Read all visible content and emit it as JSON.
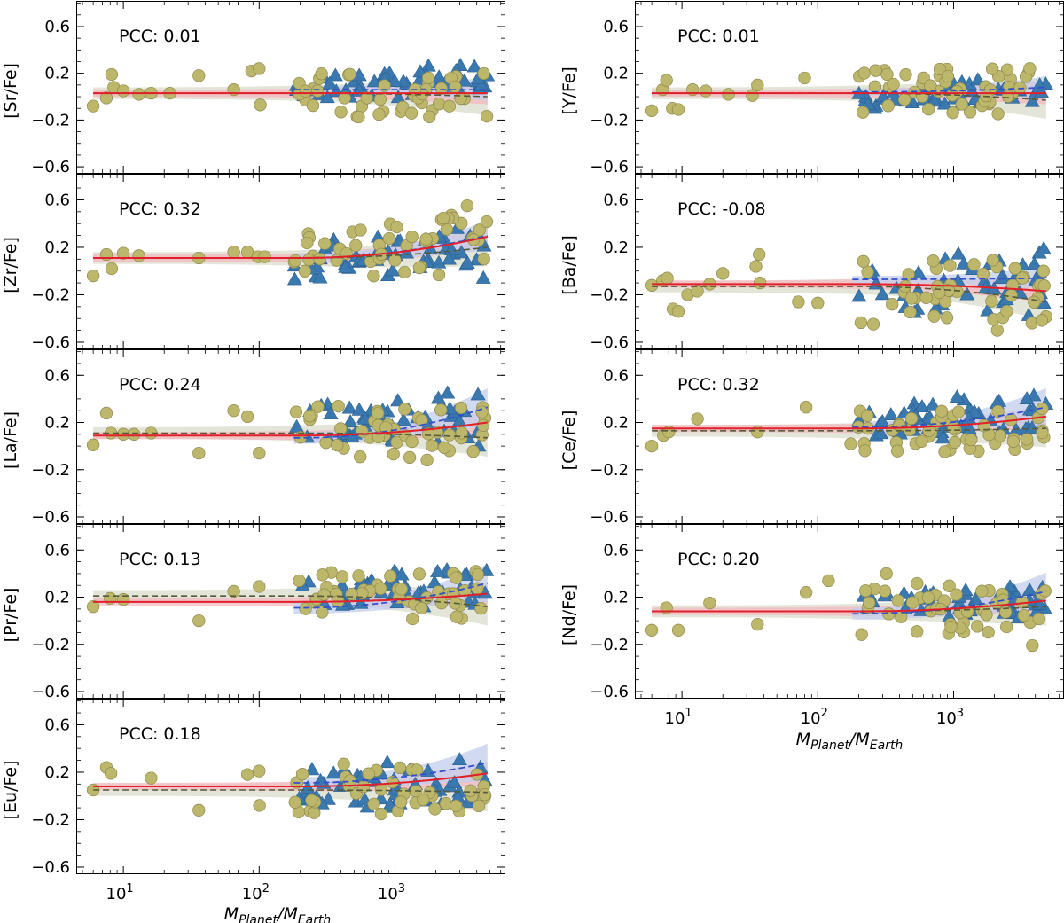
{
  "figure": {
    "xlabel": {
      "main1": "M",
      "sub1": "Planet",
      "slash": "/M",
      "sub2": "Earth"
    },
    "colors": {
      "stars_low": "#BDB76B",
      "stars_low_edge": "#8f8a4e",
      "stars_high": "#3A78B0",
      "fit_all": "#E0202A",
      "fit_all_band": "#F4B8C0",
      "fit_low": "#555a3a",
      "fit_low_band": "#d9dccb",
      "fit_high": "#3050D0",
      "fit_high_band": "#c3cdee"
    }
  },
  "chart_data": [
    {
      "type": "scatter",
      "id": "sr",
      "ylabel": "[Sr/Fe]",
      "pcc_text": "PCC: 0.01",
      "xscale": "log",
      "xlim": [
        4.5,
        6500
      ],
      "ylim": [
        -0.66,
        0.82
      ],
      "yticks": [
        -0.6,
        -0.2,
        0.2,
        0.6
      ],
      "yticklabels": [
        "−0.6",
        "−0.2",
        "0.2",
        "0.6"
      ],
      "xticks": [
        10,
        100,
        1000
      ],
      "xticklabels": [
        "10",
        "10",
        "10"
      ],
      "xtick_exponents": [
        "1",
        "2",
        "3"
      ],
      "show_xticklabels": false,
      "fit_all": {
        "base": 0.03,
        "end": 0.03,
        "band": 0.03
      },
      "fit_low": {
        "start": 1,
        "base": 0.03,
        "end": 0.0,
        "band": 0.05
      },
      "fit_high": {
        "start": 180,
        "base": 0.06,
        "end": 0.06,
        "band": 0.03
      },
      "count_low": 58,
      "count_high": 52,
      "anchors": [
        [
          6,
          -0.08
        ],
        [
          7.5,
          -0.01
        ],
        [
          8.2,
          0.19
        ],
        [
          8.5,
          0.08
        ],
        [
          10,
          0.05
        ],
        [
          13,
          0.02
        ],
        [
          16,
          0.03
        ],
        [
          22,
          0.03
        ],
        [
          36,
          0.18
        ],
        [
          65,
          0.06
        ],
        [
          88,
          0.22
        ],
        [
          100,
          0.24
        ],
        [
          102,
          -0.07
        ]
      ],
      "xmax": 4800,
      "y_low": [
        -0.2,
        0.2
      ],
      "y_high": [
        -0.12,
        0.33
      ]
    },
    {
      "type": "scatter",
      "id": "y",
      "ylabel": "[Y/Fe]",
      "pcc_text": "PCC: 0.01",
      "xscale": "log",
      "xlim": [
        4.5,
        6500
      ],
      "ylim": [
        -0.66,
        0.82
      ],
      "yticks": [
        -0.6,
        -0.2,
        0.2,
        0.6
      ],
      "yticklabels": [
        "−0.6",
        "−0.2",
        "0.2",
        "0.6"
      ],
      "xticks": [
        10,
        100,
        1000
      ],
      "xticklabels": [
        "10",
        "10",
        "10"
      ],
      "xtick_exponents": [
        "1",
        "2",
        "3"
      ],
      "show_xticklabels": false,
      "fit_all": {
        "base": 0.03,
        "end": 0.03,
        "band": 0.03
      },
      "fit_low": {
        "start": 1,
        "base": 0.03,
        "end": -0.03,
        "band": 0.05
      },
      "fit_high": {
        "start": 180,
        "base": 0.04,
        "end": 0.08,
        "band": 0.03
      },
      "count_low": 60,
      "count_high": 50,
      "anchors": [
        [
          6,
          -0.12
        ],
        [
          7.2,
          0.06
        ],
        [
          7.7,
          0.14
        ],
        [
          8.5,
          -0.1
        ],
        [
          9.4,
          -0.11
        ],
        [
          12,
          0.06
        ],
        [
          15,
          0.05
        ],
        [
          22,
          0.02
        ],
        [
          33,
          0.01
        ],
        [
          36,
          0.1
        ],
        [
          80,
          0.16
        ]
      ],
      "xmax": 4800,
      "y_low": [
        -0.15,
        0.25
      ],
      "y_high": [
        -0.18,
        0.2
      ]
    },
    {
      "type": "scatter",
      "id": "zr",
      "ylabel": "[Zr/Fe]",
      "pcc_text": "PCC: 0.32",
      "xscale": "log",
      "xlim": [
        4.5,
        6500
      ],
      "ylim": [
        -0.66,
        0.82
      ],
      "yticks": [
        -0.6,
        -0.2,
        0.2,
        0.6
      ],
      "yticklabels": [
        "−0.6",
        "−0.2",
        "0.2",
        "0.6"
      ],
      "xticks": [
        10,
        100,
        1000
      ],
      "xticklabels": [
        "10",
        "10",
        "10"
      ],
      "xtick_exponents": [
        "1",
        "2",
        "3"
      ],
      "show_xticklabels": false,
      "fit_all": {
        "base": 0.11,
        "end": 0.29,
        "band": 0.03
      },
      "fit_low": {
        "start": 1,
        "base": 0.11,
        "end": 0.2,
        "band": 0.05
      },
      "fit_high": {
        "start": 180,
        "base": 0.11,
        "end": 0.3,
        "band": 0.04
      },
      "count_low": 58,
      "count_high": 52,
      "anchors": [
        [
          6,
          -0.04
        ],
        [
          7.5,
          0.14
        ],
        [
          8.2,
          0.02
        ],
        [
          10,
          0.15
        ],
        [
          13,
          0.13
        ],
        [
          36,
          0.11
        ],
        [
          65,
          0.16
        ],
        [
          82,
          0.16
        ],
        [
          98,
          0.12
        ],
        [
          110,
          0.12
        ],
        [
          2600,
          0.47
        ],
        [
          3400,
          0.55
        ]
      ],
      "xmax": 4800,
      "y_low": [
        -0.05,
        0.45
      ],
      "y_high": [
        -0.18,
        0.45
      ]
    },
    {
      "type": "scatter",
      "id": "ba",
      "ylabel": "[Ba/Fe]",
      "pcc_text": "PCC: -0.08",
      "xscale": "log",
      "xlim": [
        4.5,
        6500
      ],
      "ylim": [
        -0.66,
        0.82
      ],
      "yticks": [
        -0.6,
        -0.2,
        0.2,
        0.6
      ],
      "yticklabels": [
        "−0.6",
        "−0.2",
        "0.2",
        "0.6"
      ],
      "xticks": [
        10,
        100,
        1000
      ],
      "xticklabels": [
        "10",
        "10",
        "10"
      ],
      "xtick_exponents": [
        "1",
        "2",
        "3"
      ],
      "show_xticklabels": false,
      "fit_all": {
        "base": -0.11,
        "end": -0.17,
        "band": 0.03
      },
      "fit_low": {
        "start": 1,
        "base": -0.13,
        "end": -0.26,
        "band": 0.05
      },
      "fit_high": {
        "start": 180,
        "base": -0.07,
        "end": -0.06,
        "band": 0.03
      },
      "count_low": 62,
      "count_high": 50,
      "anchors": [
        [
          6,
          -0.12
        ],
        [
          7.2,
          -0.08
        ],
        [
          7.8,
          -0.06
        ],
        [
          8.6,
          -0.32
        ],
        [
          9.4,
          -0.34
        ],
        [
          11,
          -0.2
        ],
        [
          13,
          -0.17
        ],
        [
          16,
          -0.11
        ],
        [
          20,
          -0.02
        ],
        [
          35,
          0.04
        ],
        [
          37,
          0.14
        ],
        [
          37.5,
          -0.1
        ],
        [
          72,
          -0.26
        ],
        [
          100,
          -0.27
        ],
        [
          2100,
          -0.5
        ]
      ],
      "xmax": 4800,
      "y_low": [
        -0.45,
        0.1
      ],
      "y_high": [
        -0.52,
        0.28
      ]
    },
    {
      "type": "scatter",
      "id": "la",
      "ylabel": "[La/Fe]",
      "pcc_text": "PCC: 0.24",
      "xscale": "log",
      "xlim": [
        4.5,
        6500
      ],
      "ylim": [
        -0.66,
        0.82
      ],
      "yticks": [
        -0.6,
        -0.2,
        0.2,
        0.6
      ],
      "yticklabels": [
        "−0.6",
        "−0.2",
        "0.2",
        "0.6"
      ],
      "xticks": [
        10,
        100,
        1000
      ],
      "xticklabels": [
        "10",
        "10",
        "10"
      ],
      "xtick_exponents": [
        "1",
        "2",
        "3"
      ],
      "show_xticklabels": false,
      "fit_all": {
        "base": 0.09,
        "end": 0.2,
        "band": 0.03
      },
      "fit_low": {
        "start": 1,
        "base": 0.11,
        "end": 0.07,
        "band": 0.05
      },
      "fit_high": {
        "start": 180,
        "base": 0.07,
        "end": 0.33,
        "band": 0.05
      },
      "count_low": 58,
      "count_high": 52,
      "anchors": [
        [
          6,
          0.01
        ],
        [
          7.5,
          0.28
        ],
        [
          8.1,
          0.11
        ],
        [
          10,
          0.1
        ],
        [
          12,
          0.1
        ],
        [
          16,
          0.11
        ],
        [
          36,
          -0.06
        ],
        [
          65,
          0.3
        ],
        [
          82,
          0.25
        ],
        [
          100,
          -0.06
        ]
      ],
      "xmax": 4800,
      "y_low": [
        -0.12,
        0.35
      ],
      "y_high": [
        -0.1,
        0.55
      ]
    },
    {
      "type": "scatter",
      "id": "ce",
      "ylabel": "[Ce/Fe]",
      "pcc_text": "PCC: 0.32",
      "xscale": "log",
      "xlim": [
        4.5,
        6500
      ],
      "ylim": [
        -0.66,
        0.82
      ],
      "yticks": [
        -0.6,
        -0.2,
        0.2,
        0.6
      ],
      "yticklabels": [
        "−0.6",
        "−0.2",
        "0.2",
        "0.6"
      ],
      "xticks": [
        10,
        100,
        1000
      ],
      "xticklabels": [
        "10",
        "10",
        "10"
      ],
      "xtick_exponents": [
        "1",
        "2",
        "3"
      ],
      "show_xticklabels": false,
      "fit_all": {
        "base": 0.15,
        "end": 0.25,
        "band": 0.03
      },
      "fit_low": {
        "start": 1,
        "base": 0.13,
        "end": 0.15,
        "band": 0.05
      },
      "fit_high": {
        "start": 180,
        "base": 0.16,
        "end": 0.33,
        "band": 0.05
      },
      "count_low": 56,
      "count_high": 52,
      "anchors": [
        [
          6,
          0.0
        ],
        [
          7.3,
          0.09
        ],
        [
          8,
          0.12
        ],
        [
          13,
          0.23
        ],
        [
          36,
          0.12
        ],
        [
          82,
          0.33
        ],
        [
          175,
          0.02
        ],
        [
          4200,
          0.24
        ],
        [
          4500,
          0.13
        ]
      ],
      "xmax": 4800,
      "y_low": [
        -0.05,
        0.32
      ],
      "y_high": [
        -0.02,
        0.52
      ]
    },
    {
      "type": "scatter",
      "id": "pr",
      "ylabel": "[Pr/Fe]",
      "pcc_text": "PCC: 0.13",
      "xscale": "log",
      "xlim": [
        4.5,
        6500
      ],
      "ylim": [
        -0.66,
        0.82
      ],
      "yticks": [
        -0.6,
        -0.2,
        0.2,
        0.6
      ],
      "yticklabels": [
        "−0.6",
        "−0.2",
        "0.2",
        "0.6"
      ],
      "xticks": [
        10,
        100,
        1000
      ],
      "xticklabels": [
        "10",
        "10",
        "10"
      ],
      "xtick_exponents": [
        "1",
        "2",
        "3"
      ],
      "show_xticklabels": false,
      "fit_all": {
        "base": 0.16,
        "end": 0.23,
        "band": 0.03
      },
      "fit_low": {
        "start": 1,
        "base": 0.21,
        "end": 0.12,
        "band": 0.05
      },
      "fit_high": {
        "start": 180,
        "base": 0.11,
        "end": 0.32,
        "band": 0.05
      },
      "count_low": 52,
      "count_high": 50,
      "anchors": [
        [
          6,
          0.12
        ],
        [
          8,
          0.19
        ],
        [
          10,
          0.18
        ],
        [
          36,
          0.0
        ],
        [
          65,
          0.25
        ],
        [
          100,
          0.29
        ],
        [
          340,
          0.41
        ],
        [
          3100,
          0.02
        ]
      ],
      "xmax": 4800,
      "y_low": [
        0.0,
        0.42
      ],
      "y_high": [
        0.02,
        0.5
      ]
    },
    {
      "type": "scatter",
      "id": "nd",
      "ylabel": "[Nd/Fe]",
      "pcc_text": "PCC: 0.20",
      "xscale": "log",
      "xlim": [
        4.5,
        6500
      ],
      "ylim": [
        -0.66,
        0.82
      ],
      "yticks": [
        -0.6,
        -0.2,
        0.2,
        0.6
      ],
      "yticklabels": [
        "−0.6",
        "−0.2",
        "0.2",
        "0.6"
      ],
      "xticks": [
        10,
        100,
        1000
      ],
      "xticklabels": [
        "10",
        "10",
        "10"
      ],
      "xtick_exponents": [
        "1",
        "2",
        "3"
      ],
      "show_xticklabels": true,
      "fit_all": {
        "base": 0.08,
        "end": 0.17,
        "band": 0.03
      },
      "fit_low": {
        "start": 1,
        "base": 0.08,
        "end": 0.12,
        "band": 0.05
      },
      "fit_high": {
        "start": 180,
        "base": 0.06,
        "end": 0.25,
        "band": 0.05
      },
      "count_low": 56,
      "count_high": 52,
      "anchors": [
        [
          6,
          -0.08
        ],
        [
          7.7,
          0.11
        ],
        [
          9.4,
          -0.08
        ],
        [
          16,
          0.15
        ],
        [
          36,
          -0.03
        ],
        [
          82,
          0.24
        ],
        [
          120,
          0.34
        ],
        [
          320,
          0.4
        ],
        [
          3800,
          -0.21
        ]
      ],
      "xmax": 4800,
      "y_low": [
        -0.12,
        0.32
      ],
      "y_high": [
        -0.05,
        0.35
      ]
    },
    {
      "type": "scatter",
      "id": "eu",
      "ylabel": "[Eu/Fe]",
      "pcc_text": "PCC: 0.18",
      "xscale": "log",
      "xlim": [
        4.5,
        6500
      ],
      "ylim": [
        -0.66,
        0.82
      ],
      "yticks": [
        -0.6,
        -0.2,
        0.2,
        0.6
      ],
      "yticklabels": [
        "−0.6",
        "−0.2",
        "0.2",
        "0.6"
      ],
      "xticks": [
        10,
        100,
        1000
      ],
      "xticklabels": [
        "10",
        "10",
        "10"
      ],
      "xtick_exponents": [
        "1",
        "2",
        "3"
      ],
      "show_xticklabels": true,
      "fit_all": {
        "base": 0.08,
        "end": 0.19,
        "band": 0.03
      },
      "fit_low": {
        "start": 1,
        "base": 0.05,
        "end": 0.03,
        "band": 0.05
      },
      "fit_high": {
        "start": 180,
        "base": 0.11,
        "end": 0.28,
        "band": 0.05
      },
      "count_low": 52,
      "count_high": 52,
      "anchors": [
        [
          6,
          0.05
        ],
        [
          7.5,
          0.24
        ],
        [
          8.1,
          0.19
        ],
        [
          16,
          0.15
        ],
        [
          36,
          -0.12
        ],
        [
          82,
          0.18
        ],
        [
          100,
          0.21
        ],
        [
          100.5,
          -0.08
        ],
        [
          4600,
          0.0
        ]
      ],
      "xmax": 4800,
      "y_low": [
        -0.16,
        0.3
      ],
      "y_high": [
        -0.22,
        0.42
      ]
    }
  ]
}
